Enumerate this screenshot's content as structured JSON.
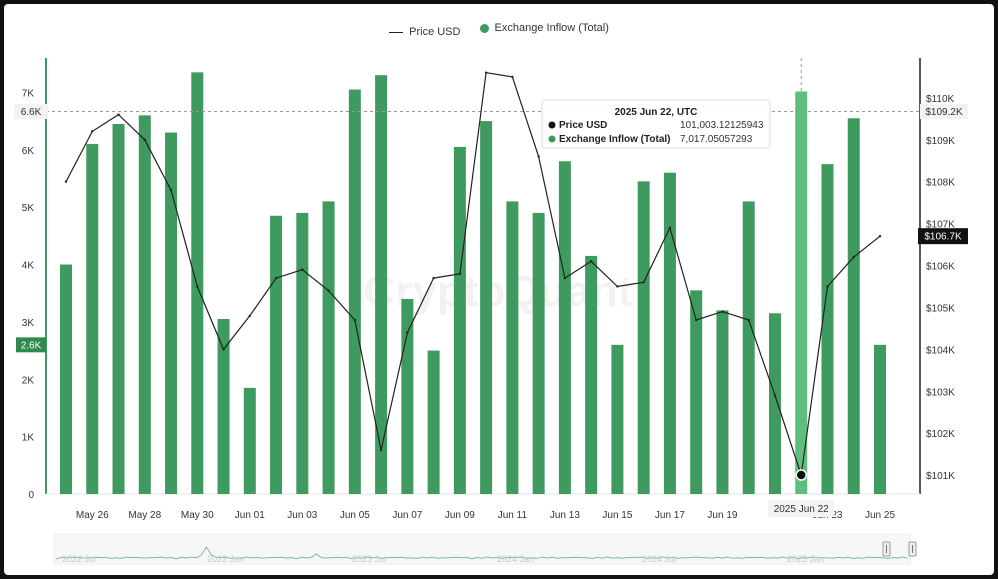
{
  "legend": {
    "price_label": "Price USD",
    "inflow_label": "Exchange Inflow (Total)"
  },
  "colors": {
    "bar": "#3e9a5e",
    "bar_highlight": "#5cbf7d",
    "line": "#222222",
    "accent_badge": "#2f8a4e"
  },
  "tooltip": {
    "date": "2025 Jun 22, UTC",
    "price_label": "Price USD",
    "price_value": "101,003.12125943",
    "inflow_label": "Exchange Inflow (Total)",
    "inflow_value": "7,017.05057293"
  },
  "crosshair": {
    "left_value_label": "6.6K",
    "right_value_label": "$109.2K",
    "date_label": "2025 Jun 22"
  },
  "markers": {
    "last_inflow_label": "2.6K",
    "last_price_label": "$106.7K"
  },
  "watermark": "CryptoQuant",
  "navigator": {
    "labels": [
      "2022 Jul",
      "2023 Jan",
      "2023 Jul",
      "2024 Jan",
      "2024 Jul",
      "2025 Jan"
    ]
  },
  "chart_data": {
    "type": "bar",
    "categories": [
      "May 25",
      "May 26",
      "May 27",
      "May 28",
      "May 29",
      "May 30",
      "May 31",
      "Jun 01",
      "Jun 02",
      "Jun 03",
      "Jun 04",
      "Jun 05",
      "Jun 06",
      "Jun 07",
      "Jun 08",
      "Jun 09",
      "Jun 10",
      "Jun 11",
      "Jun 12",
      "Jun 13",
      "Jun 14",
      "Jun 15",
      "Jun 16",
      "Jun 17",
      "Jun 18",
      "Jun 19",
      "Jun 20",
      "Jun 21",
      "Jun 22",
      "Jun 23",
      "Jun 24",
      "Jun 25"
    ],
    "x_tick_labels": [
      "May 26",
      "May 28",
      "May 30",
      "Jun 01",
      "Jun 03",
      "Jun 05",
      "Jun 07",
      "Jun 09",
      "Jun 11",
      "Jun 13",
      "Jun 15",
      "Jun 17",
      "Jun 19",
      "",
      "Jun 23",
      "Jun 25"
    ],
    "series": [
      {
        "name": "Exchange Inflow (Total)",
        "axis": "left",
        "values": [
          4000,
          6100,
          6450,
          6600,
          6300,
          7350,
          3050,
          1850,
          4850,
          4900,
          5100,
          7050,
          7300,
          3400,
          2500,
          6050,
          6500,
          5100,
          4900,
          5800,
          4150,
          2600,
          5450,
          5600,
          3550,
          3200,
          5100,
          3150,
          7017,
          5750,
          6550,
          2600
        ]
      },
      {
        "name": "Price USD",
        "axis": "right",
        "values": [
          108000,
          109200,
          109600,
          109000,
          107800,
          105500,
          104000,
          104800,
          105700,
          105900,
          105400,
          104700,
          101600,
          104400,
          105700,
          105800,
          110600,
          110500,
          108600,
          105700,
          106100,
          105500,
          105600,
          106900,
          104700,
          104900,
          104700,
          102900,
          101003,
          105500,
          106200,
          106700
        ]
      }
    ],
    "y_left": {
      "ticks": [
        "0",
        "1K",
        "2K",
        "3K",
        "4K",
        "5K",
        "6K",
        "7K"
      ],
      "ylim": [
        0,
        7600
      ]
    },
    "y_right": {
      "ticks": [
        "$101K",
        "$102K",
        "$103K",
        "$104K",
        "$105K",
        "$106K",
        "$107K",
        "$108K",
        "$109K",
        "$110K"
      ],
      "ylim": [
        100550,
        110950
      ]
    },
    "grid": false,
    "legend_position": "top-center"
  }
}
